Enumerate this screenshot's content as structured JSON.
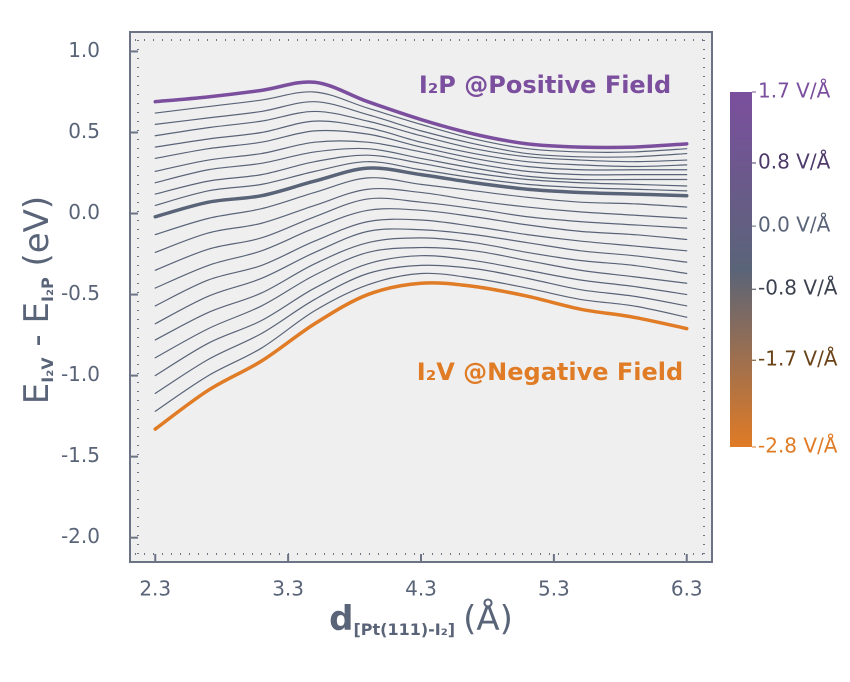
{
  "chart_data": {
    "type": "line",
    "xlabel": [
      "d",
      "[Pt(111)-I₂]",
      "(Å)"
    ],
    "ylabel": [
      "E",
      "I₂V",
      " - E",
      "I₂P",
      "  (eV)"
    ],
    "x": [
      2.3,
      2.7,
      3.1,
      3.5,
      3.9,
      4.3,
      4.7,
      5.1,
      5.5,
      5.9,
      6.3
    ],
    "xlim": [
      2.11,
      6.49
    ],
    "ylim": [
      -2.15,
      1.12
    ],
    "xticks": [
      2.3,
      3.3,
      4.3,
      5.3,
      6.3
    ],
    "yticks": [
      {
        "value": 1,
        "label": "1.0"
      },
      0.5,
      {
        "value": 0,
        "label": "0.0"
      },
      -0.5,
      {
        "value": -1,
        "label": "-1.0"
      },
      -1.5,
      {
        "value": -2,
        "label": "-2.0"
      }
    ],
    "series": [
      {
        "color": "#7b4f9e",
        "linewidth": 3.5,
        "values": [
          0.69,
          0.72,
          0.76,
          0.81,
          0.69,
          0.58,
          0.49,
          0.43,
          0.41,
          0.41,
          0.43
        ]
      },
      {
        "color": "#5a6478",
        "linewidth": 1.2,
        "values": [
          0.62,
          0.66,
          0.7,
          0.75,
          0.65,
          0.55,
          0.46,
          0.4,
          0.38,
          0.38,
          0.4
        ]
      },
      {
        "color": "#5a6478",
        "linewidth": 1.2,
        "values": [
          0.55,
          0.59,
          0.63,
          0.69,
          0.61,
          0.51,
          0.43,
          0.37,
          0.35,
          0.35,
          0.37
        ]
      },
      {
        "color": "#5a6478",
        "linewidth": 1.2,
        "values": [
          0.48,
          0.53,
          0.57,
          0.63,
          0.57,
          0.48,
          0.4,
          0.35,
          0.33,
          0.32,
          0.33
        ]
      },
      {
        "color": "#5a6478",
        "linewidth": 1.2,
        "values": [
          0.41,
          0.46,
          0.5,
          0.57,
          0.53,
          0.44,
          0.37,
          0.32,
          0.3,
          0.29,
          0.3
        ]
      },
      {
        "color": "#5a6478",
        "linewidth": 1.2,
        "values": [
          0.34,
          0.4,
          0.44,
          0.51,
          0.49,
          0.41,
          0.34,
          0.29,
          0.27,
          0.27,
          0.27
        ]
      },
      {
        "color": "#5a6478",
        "linewidth": 1.2,
        "values": [
          0.26,
          0.33,
          0.37,
          0.44,
          0.44,
          0.38,
          0.31,
          0.26,
          0.24,
          0.24,
          0.24
        ]
      },
      {
        "color": "#5a6478",
        "linewidth": 1.2,
        "values": [
          0.19,
          0.27,
          0.31,
          0.38,
          0.4,
          0.34,
          0.28,
          0.23,
          0.21,
          0.21,
          0.21
        ]
      },
      {
        "color": "#5a6478",
        "linewidth": 1.2,
        "values": [
          0.12,
          0.2,
          0.24,
          0.32,
          0.36,
          0.31,
          0.25,
          0.21,
          0.19,
          0.18,
          0.17
        ]
      },
      {
        "color": "#5a6478",
        "linewidth": 1.2,
        "values": [
          0.05,
          0.14,
          0.18,
          0.26,
          0.32,
          0.27,
          0.22,
          0.18,
          0.16,
          0.15,
          0.14
        ]
      },
      {
        "color": "#5a6478",
        "linewidth": 3.5,
        "values": [
          -0.02,
          0.07,
          0.11,
          0.2,
          0.28,
          0.24,
          0.19,
          0.15,
          0.13,
          0.12,
          0.11
        ]
      },
      {
        "color": "#5a6478",
        "linewidth": 1.2,
        "values": [
          -0.13,
          -0.03,
          0.03,
          0.13,
          0.22,
          0.18,
          0.14,
          0.1,
          0.07,
          0.06,
          0.04
        ]
      },
      {
        "color": "#5a6478",
        "linewidth": 1.2,
        "values": [
          -0.24,
          -0.12,
          -0.06,
          0.05,
          0.15,
          0.13,
          0.08,
          0.04,
          0.01,
          -0.01,
          -0.03
        ]
      },
      {
        "color": "#5a6478",
        "linewidth": 1.2,
        "values": [
          -0.35,
          -0.22,
          -0.15,
          -0.02,
          0.09,
          0.07,
          0.03,
          -0.02,
          -0.05,
          -0.07,
          -0.09
        ]
      },
      {
        "color": "#5a6478",
        "linewidth": 1.2,
        "values": [
          -0.46,
          -0.32,
          -0.23,
          -0.09,
          0.02,
          0.02,
          -0.02,
          -0.07,
          -0.11,
          -0.13,
          -0.16
        ]
      },
      {
        "color": "#5a6478",
        "linewidth": 1.2,
        "values": [
          -0.57,
          -0.41,
          -0.32,
          -0.17,
          -0.05,
          -0.04,
          -0.08,
          -0.13,
          -0.17,
          -0.2,
          -0.23
        ]
      },
      {
        "color": "#5a6478",
        "linewidth": 1.2,
        "values": [
          -0.68,
          -0.51,
          -0.4,
          -0.24,
          -0.11,
          -0.1,
          -0.13,
          -0.18,
          -0.23,
          -0.26,
          -0.3
        ]
      },
      {
        "color": "#5a6478",
        "linewidth": 1.2,
        "values": [
          -0.78,
          -0.61,
          -0.49,
          -0.31,
          -0.18,
          -0.15,
          -0.18,
          -0.24,
          -0.29,
          -0.32,
          -0.37
        ]
      },
      {
        "color": "#5a6478",
        "linewidth": 1.2,
        "values": [
          -0.89,
          -0.71,
          -0.57,
          -0.38,
          -0.24,
          -0.21,
          -0.23,
          -0.29,
          -0.35,
          -0.39,
          -0.43
        ]
      },
      {
        "color": "#5a6478",
        "linewidth": 1.2,
        "values": [
          -1.0,
          -0.8,
          -0.66,
          -0.46,
          -0.31,
          -0.26,
          -0.29,
          -0.35,
          -0.41,
          -0.45,
          -0.5
        ]
      },
      {
        "color": "#5a6478",
        "linewidth": 1.2,
        "values": [
          -1.11,
          -0.9,
          -0.74,
          -0.53,
          -0.37,
          -0.32,
          -0.34,
          -0.4,
          -0.47,
          -0.51,
          -0.57
        ]
      },
      {
        "color": "#5a6478",
        "linewidth": 1.2,
        "values": [
          -1.22,
          -1.0,
          -0.83,
          -0.6,
          -0.44,
          -0.37,
          -0.4,
          -0.46,
          -0.53,
          -0.57,
          -0.64
        ]
      },
      {
        "color": "#e07b26",
        "linewidth": 3.5,
        "values": [
          -1.33,
          -1.09,
          -0.91,
          -0.68,
          -0.5,
          -0.43,
          -0.45,
          -0.51,
          -0.59,
          -0.64,
          -0.71
        ]
      }
    ],
    "annotations": [
      {
        "text": "I₂P @Positive Field",
        "color": "#7b4f9e"
      },
      {
        "text": "I₂V @Negative Field",
        "color": "#e07b26"
      }
    ],
    "colorbar": {
      "lim": [
        -2.8,
        1.7
      ],
      "colors": [
        "#7b4f9e",
        "#5a6478",
        "#e07b26"
      ],
      "ticks": [
        {
          "value": 1.7,
          "label": "1.7 V/Å",
          "color": "#7b4f9e"
        },
        {
          "value": 0.8,
          "label": "0.8 V/Å",
          "color": "#4d3a6a"
        },
        {
          "value": 0,
          "label": "0.0 V/Å",
          "color": "#5a6478"
        },
        {
          "value": -0.8,
          "label": "-0.8 V/Å",
          "color": "#3c4250"
        },
        {
          "value": -1.7,
          "label": "-1.7 V/Å",
          "color": "#6a4418"
        },
        {
          "value": -2.8,
          "label": "-2.8 V/Å",
          "color": "#e07b26"
        }
      ]
    }
  }
}
